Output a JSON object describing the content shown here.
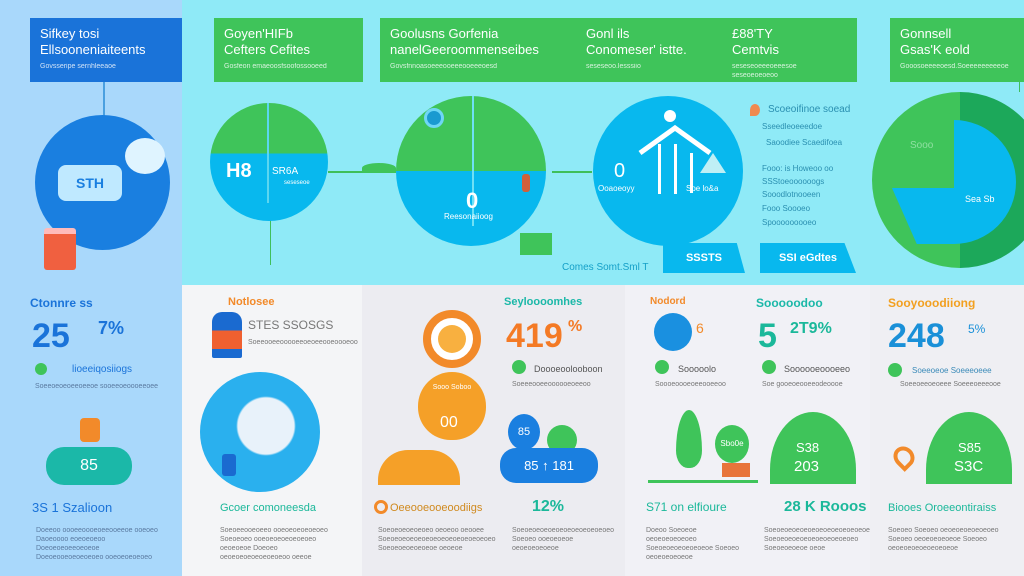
{
  "top": {
    "box1": {
      "title1": "Sifkey tosi",
      "title2": "Ellsooneniaiteents",
      "sub": "Govsseripe sernhleeaoe"
    },
    "box2": {
      "title1": "Goyen'HIFb",
      "title2": "Cefters Cefites",
      "sub": "Gosfeon emaeoosfsoofossooeed"
    },
    "box3": {
      "title1": "Goolusns Gorfenia",
      "title2": "nanelGeeroommenseibes",
      "sub": "Govsfnnoasoeeeooeeeooeeeoesd"
    },
    "box4": {
      "title1": "Gonl ils",
      "title2": "Conomeser' istte.",
      "sub": "seseseoo.lesssiio"
    },
    "box5": {
      "title1": "£88'TY",
      "title2": "Cemtvis",
      "sub": "seseseoeeeoeeesoe seseoeoeoeoo"
    },
    "box6": {
      "title1": "Gonnsell",
      "title2": "Gsas'K eold",
      "sub": "Gooosoeeeeoesd.Soeeeeeeeeeoe"
    },
    "circle1": {
      "label": "STH"
    },
    "circle2": {
      "value": "H8",
      "label": "SR6A",
      "sub": "seseseoe"
    },
    "circle3": {
      "value": "0",
      "label": "Reesonaiioog"
    },
    "circle4": {
      "value": "0",
      "label": "Ooaoeoyy",
      "label2": "Soe lo&a"
    },
    "list": [
      "Scoeoifinoe soead",
      "Sseedleoeeedoe",
      "Saoodiee Scaedifoea",
      "Fooo: is Howeoo oo",
      "SSStoeoooooogs",
      "Sooodlotnooeen",
      "Fooo Soooeo",
      "Spooooooooeo"
    ],
    "tag1": "SSSTS",
    "tag2": "SSI eGdtes",
    "footer_label": "Comes Somt.Sml T",
    "donut": {
      "label": "Sooo",
      "label2": "Sea Sb"
    }
  },
  "colors": {
    "blue": "#1a7fe0",
    "green": "#3fc45a",
    "cyan": "#08b8ee",
    "orange": "#f28a2a",
    "teal": "#1bb89a"
  },
  "stats": [
    {
      "title": "Ctonnre ss",
      "value": "25",
      "unit": "7%",
      "item": "lioeeiqosiiogs",
      "desc": "Soeeoeoeoeeoeeoe sooeeoeoooeeoee"
    },
    {
      "title": "Notlosee",
      "value": "",
      "unit": "STES SSOSGS",
      "item": "",
      "desc": "Soeeooeeooooeeoeoeeooeoooeoo"
    },
    {
      "title": "Seyloooomhes",
      "value": "419",
      "unit": "%",
      "item": "Doooeoolooboon",
      "desc": "Soeeeooeeoooooeoeeoo"
    },
    {
      "title": "Nodord",
      "value": "",
      "unit": "6",
      "item": "Sooooolo",
      "desc": "Soooeoooeoeeooeeoo"
    },
    {
      "title": "Sooooodoo",
      "value": "5",
      "unit": "2T9%",
      "item": "Soooooeoooeeo",
      "desc": "Soe gooeoeooeeodeoooe"
    },
    {
      "title": "Sooyooodiiong",
      "value": "248",
      "unit": "5%",
      "item": "Soeeoeoe Soeeeoeee",
      "desc": "Soeeoeeoeoeee Soeeeoeeeooe"
    }
  ],
  "mid": {
    "pill": "85",
    "drop": "00",
    "drop_label": "Sooo Soboo",
    "badge": "85",
    "bar": "85 ↑ 181",
    "leaf_badge": "Sbo0e",
    "hill1_a": "S38",
    "hill1_b": "203",
    "hill2_a": "S85",
    "hill2_b": "S3C"
  },
  "bottom": [
    {
      "title": "3S 1 Szalioon",
      "desc": "Doeeoo oooeeoooeoeeooeeoe ooeoeo Daoeoooo eoeoeoeoo Doeoeoeoeeoeoeoe Doeoeooeoeoeoeoeo ooeoeoeoeoeo"
    },
    {
      "title": "Gcoer comoneesda",
      "desc": "Soeoeeooeoeeo ooeoeoeoeoeoeo Soeoeoeo ooeoeoeoeoeoeoeo oeoeoeoe Doeoeo oeoeoeoeoeoeoeoeoo oeeoe"
    },
    {
      "title": "Oeeooeooeoodiigs",
      "desc": "Soeoeoeoeoeoeo oeoeoo oeooee Soeoeoeoeoeoeoeoeoeoeoeoeoeoeo Soeoeoeoeoeoeoe oeoeoe"
    },
    {
      "title": "12%",
      "desc": "Soeoeoeoeoeoeoeoeoeoeoeoeo Soeoeo ooeoeoeoe oeoeoeoeoeoe"
    },
    {
      "title": "S71 on elfioure",
      "desc": "Doeoo Soeoeoe oeoeoeoeoeoeo Soeoeoeoeoeoeoeoe Soeoeo oeoeoeoeoeoe"
    },
    {
      "title": "28 K Rooos",
      "desc": "Soeoeoeoeoeoeoeoeoeoeoeoeoe Soeoeoeoeoeoeoeoeoeoeoeo Soeoeoeoeoe oeoe"
    },
    {
      "title": "Biooes Oroeeontiraiss",
      "desc": "Soeoeo Soeoeo oeoeoeoeoeoeoeo Soeoeo oeoeoeoeoeoe Soeoeo oeoeoeoeoeoeoeoeoe"
    }
  ]
}
